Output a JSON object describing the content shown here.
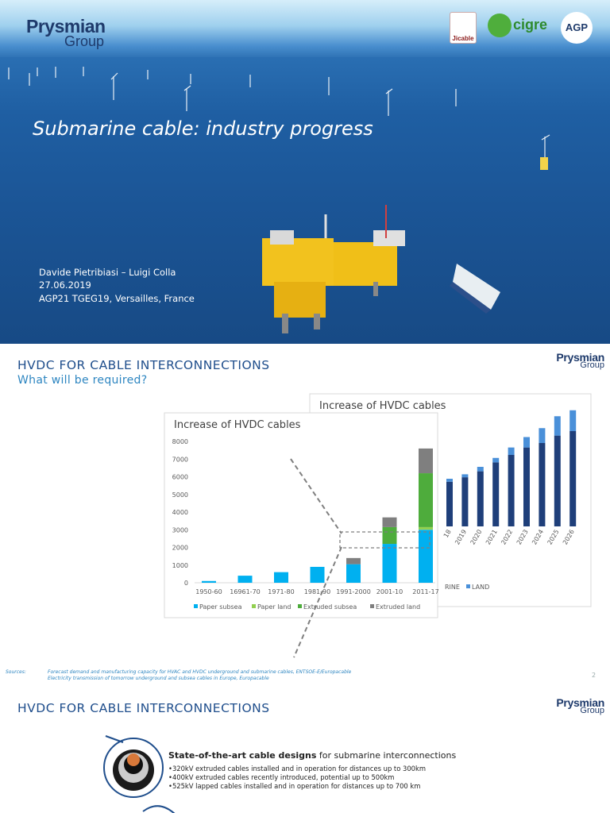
{
  "slide1": {
    "logo": {
      "line1": "Prysmian",
      "line2": "Group"
    },
    "partner_logos": {
      "jicable": "Jicable",
      "cigre": "cigre",
      "agp": "AGP"
    },
    "title": "Submarine cable: industry progress",
    "authors": "Davide Pietribiasi – Luigi Colla",
    "date": "27.06.2019",
    "event": "AGP21 TGEG19, Versailles, France"
  },
  "slide2": {
    "title": "HVDC FOR CABLE INTERCONNECTIONS",
    "subtitle": "What will be required?",
    "logo": {
      "line1": "Prysmian",
      "line2": "Group"
    },
    "sources_label": "Sources:",
    "sources": [
      "Forecast demand and manufacturing capacity for HVAC and HVDC underground and submarine cables, ENTSOE-E/Europacable",
      "Electricity transmission of tomorrow underground and subsea cables in Europe, Europacable"
    ],
    "page_number": "2"
  },
  "chart_data": [
    {
      "type": "bar",
      "stacked": true,
      "title": "Increase of HVDC cables",
      "categories": [
        "1950-60",
        "16961-70",
        "1971-80",
        "1981-90",
        "1991-2000",
        "2001-10",
        "2011-17"
      ],
      "series": [
        {
          "name": "Paper subsea",
          "color": "#00b0f0",
          "values": [
            100,
            400,
            600,
            900,
            1050,
            2200,
            3000
          ]
        },
        {
          "name": "Paper land",
          "color": "#92d050",
          "values": [
            0,
            0,
            0,
            0,
            0,
            0,
            150
          ]
        },
        {
          "name": "Extruded subsea",
          "color": "#4eac3c",
          "values": [
            0,
            0,
            0,
            0,
            0,
            950,
            3050
          ]
        },
        {
          "name": "Extruded land",
          "color": "#7f7f7f",
          "values": [
            0,
            0,
            0,
            0,
            350,
            550,
            1400
          ]
        }
      ],
      "ylim": [
        0,
        8000
      ],
      "yticks": [
        0,
        1000,
        2000,
        3000,
        4000,
        5000,
        6000,
        7000,
        8000
      ],
      "legend": "bottom",
      "grid": false
    },
    {
      "type": "bar",
      "stacked": true,
      "title": "Increase of HVDC cables",
      "categories": [
        "18",
        "2019",
        "2020",
        "2021",
        "2022",
        "2023",
        "2024",
        "2025",
        "2026"
      ],
      "series": [
        {
          "name": "RINE",
          "color": "#1f3f7a",
          "values": [
            3000,
            3300,
            3700,
            4300,
            4800,
            5300,
            5600,
            6100,
            6400
          ]
        },
        {
          "name": "LAND",
          "color": "#4a90d9",
          "values": [
            200,
            200,
            300,
            300,
            500,
            700,
            1000,
            1300,
            1400
          ]
        }
      ],
      "legend": "bottom",
      "grid": false
    }
  ],
  "slide3": {
    "title": "HVDC FOR CABLE INTERCONNECTIONS",
    "logo": {
      "line1": "Prysmian",
      "line2": "Group"
    },
    "heading_bold": "State-of-the-art cable designs",
    "heading_rest": " for submarine interconnections",
    "bullets": [
      "•320kV extruded cables installed and in operation for distances up to 300km",
      "•400kV extruded cables recently introduced, potential up to 500km",
      "•525kV lapped cables installed and in operation for distances up to 700 km"
    ]
  }
}
